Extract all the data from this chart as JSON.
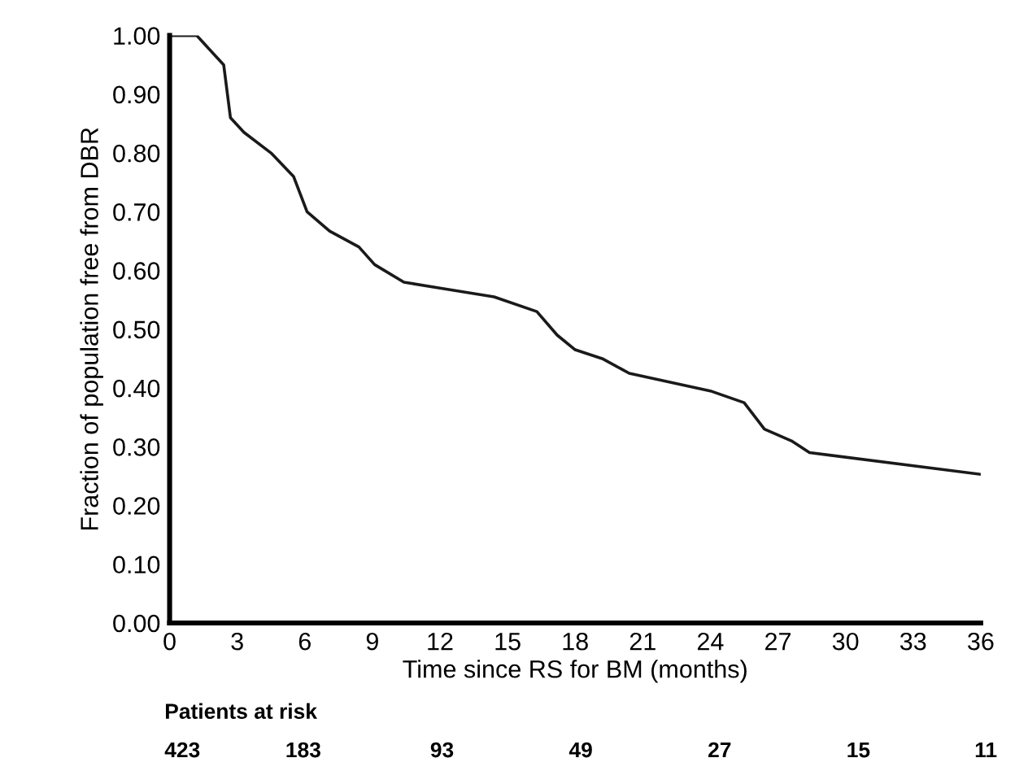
{
  "chart_data": {
    "type": "line",
    "xlabel": "Time since RS for BM (months)",
    "ylabel": "Fraction of population free from DBR",
    "series": [
      {
        "color": "#1a1a1a",
        "x": [
          0,
          1.2,
          2.4,
          2.7,
          3.3,
          4.5,
          5.5,
          6.1,
          7.1,
          8.4,
          9.1,
          10.4,
          12,
          14.4,
          16.3,
          17.2,
          18,
          19.2,
          20.4,
          24,
          25.5,
          26.4,
          27.6,
          28.4,
          36
        ],
        "values": [
          1.0,
          1.0,
          0.95,
          0.86,
          0.835,
          0.8,
          0.76,
          0.7,
          0.667,
          0.64,
          0.61,
          0.58,
          0.57,
          0.555,
          0.53,
          0.49,
          0.465,
          0.45,
          0.425,
          0.395,
          0.375,
          0.33,
          0.31,
          0.29,
          0.253
        ]
      }
    ],
    "xlim": [
      0,
      36
    ],
    "xticks": [
      0,
      3,
      6,
      9,
      12,
      15,
      18,
      21,
      24,
      27,
      30,
      33,
      36
    ],
    "ylim": [
      0,
      1
    ],
    "yticks": [
      {
        "value": 0,
        "label": "0.00"
      },
      {
        "value": 0.1,
        "label": "0.10"
      },
      {
        "value": 0.2,
        "label": "0.20"
      },
      {
        "value": 0.3,
        "label": "0.30"
      },
      {
        "value": 0.4,
        "label": "0.40"
      },
      {
        "value": 0.5,
        "label": "0.50"
      },
      {
        "value": 0.6,
        "label": "0.60"
      },
      {
        "value": 0.7,
        "label": "0.70"
      },
      {
        "value": 0.8,
        "label": "0.80"
      },
      {
        "value": 0.9,
        "label": "0.90"
      },
      {
        "value": 1,
        "label": "1.00"
      }
    ],
    "grid": false,
    "line_style": "solid",
    "annotations": [
      "Patients at risk",
      "423",
      "183",
      "93",
      "49",
      "27",
      "15",
      "11"
    ]
  }
}
